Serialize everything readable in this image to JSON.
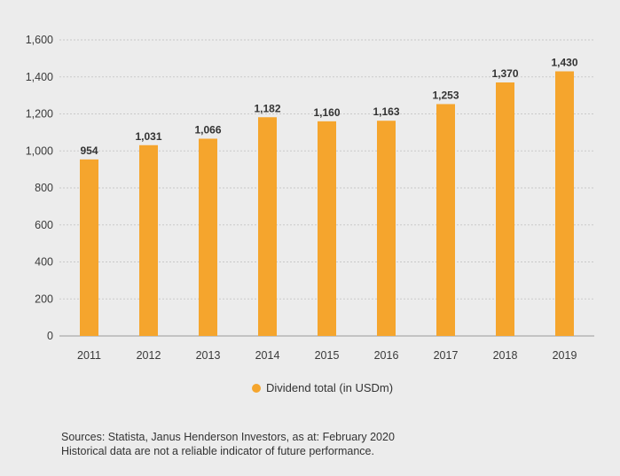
{
  "chart_data": {
    "type": "bar",
    "categories": [
      "2011",
      "2012",
      "2013",
      "2014",
      "2015",
      "2016",
      "2017",
      "2018",
      "2019"
    ],
    "series": [
      {
        "name": "Dividend total (in USDm)",
        "values": [
          954,
          1031,
          1066,
          1182,
          1160,
          1163,
          1253,
          1370,
          1430
        ]
      }
    ],
    "data_labels": [
      "954",
      "1,031",
      "1,066",
      "1,182",
      "1,160",
      "1,163",
      "1,253",
      "1,370",
      "1,430"
    ],
    "y_ticks": [
      0,
      200,
      400,
      600,
      800,
      1000,
      1200,
      1400,
      1600
    ],
    "y_tick_labels": [
      "0",
      "200",
      "400",
      "600",
      "800",
      "1,000",
      "1,200",
      "1,400",
      "1,600"
    ],
    "ylim": [
      0,
      1600
    ],
    "title": "",
    "xlabel": "",
    "ylabel": "",
    "grid": true,
    "legend_position": "bottom-center",
    "bar_color": "#f5a52d"
  },
  "legend": {
    "label": "Dividend total (in USDm)"
  },
  "footer": {
    "sources": "Sources: Statista, Janus Henderson Investors, as at: February 2020",
    "disclaimer": "Historical data are not a reliable indicator of future performance."
  }
}
